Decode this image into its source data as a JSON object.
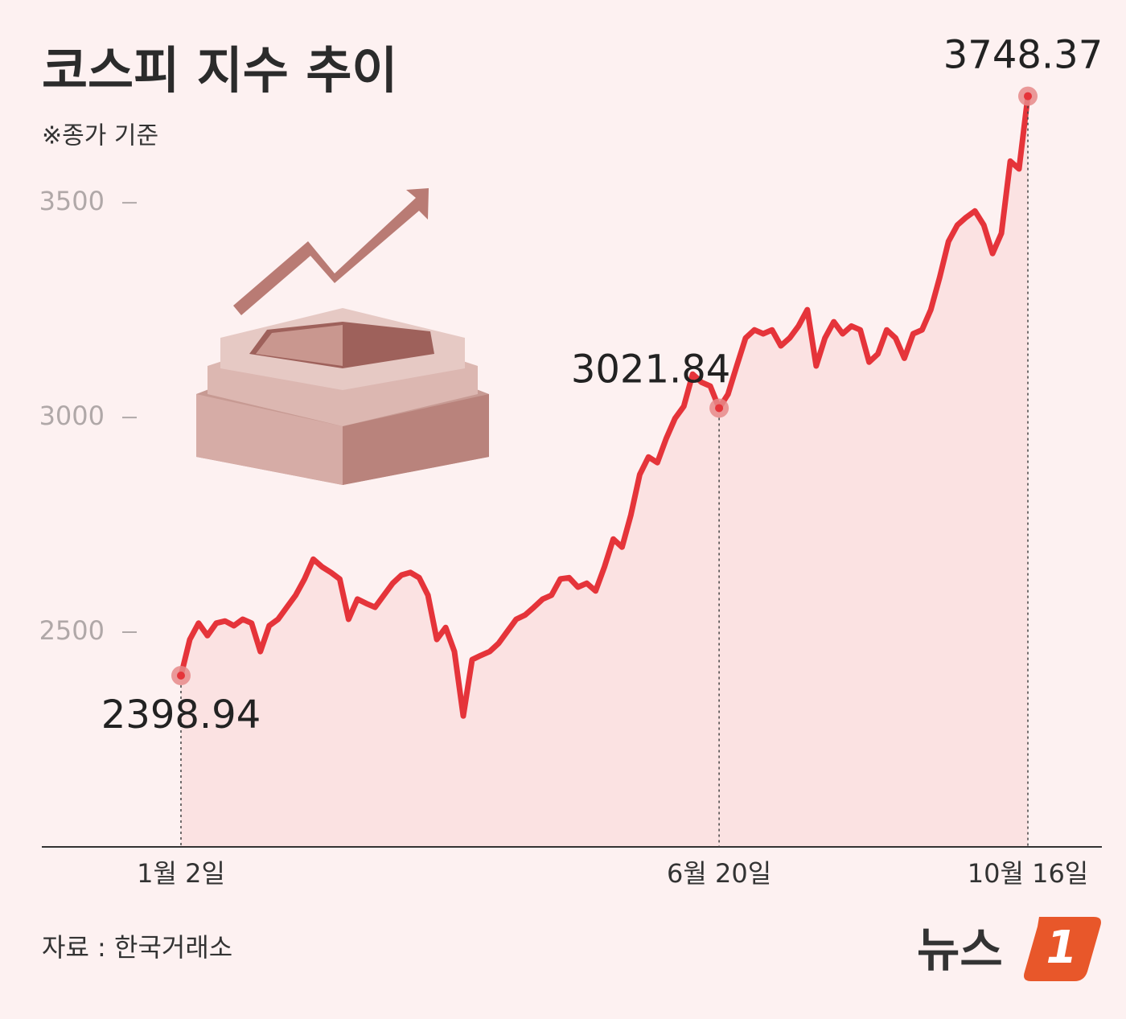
{
  "chart_data": {
    "type": "line",
    "title": "코스피 지수 추이",
    "subtitle": "※종가 기준",
    "source": "자료 : 한국거래소",
    "brand": "뉴스",
    "brand_mark": "1",
    "categories": [
      "1월 2일",
      null,
      null,
      null,
      null,
      null,
      null,
      null,
      null,
      null,
      null,
      null,
      null,
      null,
      null,
      null,
      null,
      null,
      null,
      null,
      null,
      null,
      null,
      null,
      null,
      null,
      null,
      null,
      null,
      null,
      null,
      null,
      null,
      null,
      null,
      null,
      null,
      null,
      null,
      null,
      null,
      null,
      null,
      null,
      null,
      null,
      null,
      null,
      null,
      null,
      null,
      null,
      null,
      null,
      null,
      null,
      null,
      null,
      null,
      null,
      null,
      "6월 20일",
      null,
      null,
      null,
      null,
      null,
      null,
      null,
      null,
      null,
      null,
      null,
      null,
      null,
      null,
      null,
      null,
      null,
      null,
      null,
      null,
      null,
      null,
      null,
      null,
      null,
      null,
      null,
      null,
      null,
      null,
      null,
      null,
      null,
      null,
      "10월 16일"
    ],
    "values": [
      2398.94,
      2483,
      2521,
      2492,
      2521,
      2526,
      2515,
      2530,
      2521,
      2455,
      2515,
      2530,
      2558,
      2586,
      2624,
      2670,
      2652,
      2639,
      2624,
      2530,
      2577,
      2567,
      2558,
      2586,
      2614,
      2633,
      2639,
      2627,
      2586,
      2483,
      2511,
      2455,
      2305,
      2436,
      2446,
      2455,
      2474,
      2502,
      2530,
      2540,
      2558,
      2577,
      2586,
      2624,
      2627,
      2605,
      2614,
      2596,
      2652,
      2717,
      2698,
      2773,
      2867,
      2908,
      2895,
      2951,
      2998,
      3026,
      3101,
      3082,
      3073,
      3021.84,
      3054,
      3120,
      3185,
      3204,
      3195,
      3204,
      3167,
      3185,
      3213,
      3251,
      3120,
      3185,
      3223,
      3195,
      3213,
      3204,
      3129,
      3148,
      3204,
      3185,
      3138,
      3195,
      3204,
      3251,
      3326,
      3410,
      3448,
      3466,
      3481,
      3448,
      3382,
      3429,
      3597,
      3579,
      3748.37
    ],
    "color": "#e5343a",
    "fill_color": "#fbe2e2",
    "ylim": [
      2000,
      3800
    ],
    "yticks": [
      2500,
      3000,
      3500
    ],
    "grid": false
  }
}
